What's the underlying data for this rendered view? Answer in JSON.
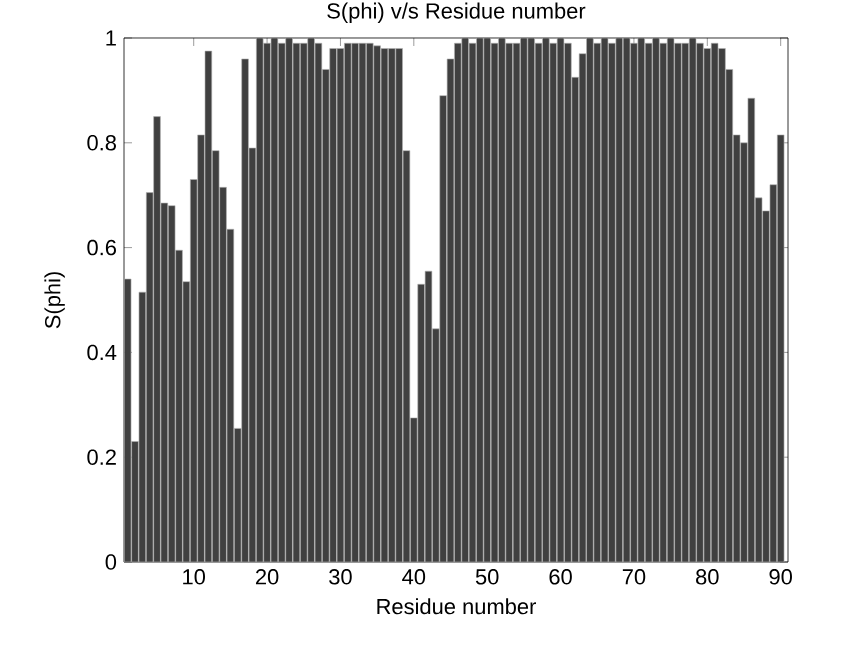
{
  "chart_data": {
    "type": "bar",
    "title": "S(phi) v/s Residue number",
    "xlabel": "Residue number",
    "ylabel": "S(phi)",
    "x": [
      1,
      2,
      3,
      4,
      5,
      6,
      7,
      8,
      9,
      10,
      11,
      12,
      13,
      14,
      15,
      16,
      17,
      18,
      19,
      20,
      21,
      22,
      23,
      24,
      25,
      26,
      27,
      28,
      29,
      30,
      31,
      32,
      33,
      34,
      35,
      36,
      37,
      38,
      39,
      40,
      41,
      42,
      43,
      44,
      45,
      46,
      47,
      48,
      49,
      50,
      51,
      52,
      53,
      54,
      55,
      56,
      57,
      58,
      59,
      60,
      61,
      62,
      63,
      64,
      65,
      66,
      67,
      68,
      69,
      70,
      71,
      72,
      73,
      74,
      75,
      76,
      77,
      78,
      79,
      80,
      81,
      82,
      83,
      84,
      85,
      86,
      87,
      88,
      89,
      90
    ],
    "values": [
      0.54,
      0.23,
      0.515,
      0.705,
      0.85,
      0.685,
      0.68,
      0.595,
      0.535,
      0.73,
      0.815,
      0.975,
      0.785,
      0.715,
      0.635,
      0.255,
      0.96,
      0.79,
      1.0,
      0.99,
      1.0,
      0.99,
      1.0,
      0.99,
      0.99,
      1.0,
      0.99,
      0.94,
      0.98,
      0.98,
      0.99,
      0.99,
      0.99,
      0.99,
      0.985,
      0.98,
      0.98,
      0.98,
      0.785,
      0.275,
      0.53,
      0.555,
      0.445,
      0.89,
      0.96,
      0.99,
      1.0,
      0.99,
      1.0,
      1.0,
      0.99,
      1.0,
      0.99,
      0.99,
      1.0,
      1.0,
      0.99,
      1.0,
      0.99,
      1.0,
      0.99,
      0.925,
      0.97,
      1.0,
      0.99,
      1.0,
      0.99,
      1.0,
      1.0,
      0.99,
      1.0,
      0.99,
      1.0,
      0.99,
      1.0,
      0.99,
      0.99,
      1.0,
      0.99,
      0.98,
      0.99,
      0.98,
      0.94,
      0.815,
      0.8,
      0.885,
      0.695,
      0.67,
      0.72,
      0.815
    ],
    "color": "#404040",
    "xlim": [
      0.5,
      91
    ],
    "ylim": [
      0,
      1
    ],
    "xticks": [
      10,
      20,
      30,
      40,
      50,
      60,
      70,
      80,
      90
    ],
    "yticks": [
      0,
      0.2,
      0.4,
      0.6,
      0.8,
      1
    ]
  }
}
